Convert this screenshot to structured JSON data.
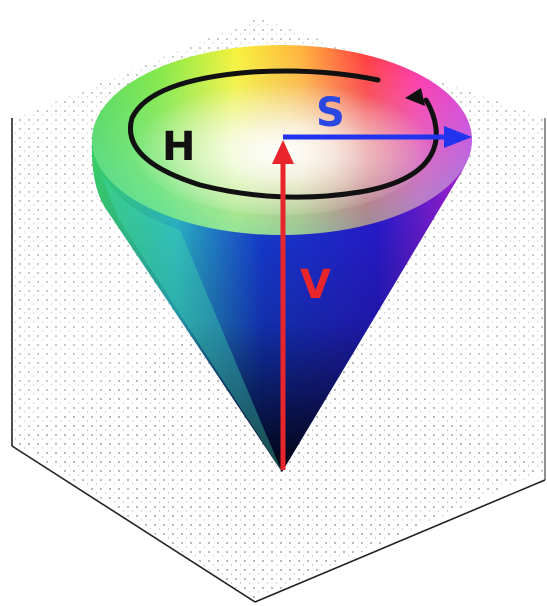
{
  "labels": {
    "hue": "H",
    "saturation": "S",
    "value": "V"
  },
  "colors": {
    "hue_ring": "#111111",
    "saturation_arrow": "#2233ee",
    "saturation_label": "#2a48e0",
    "value_arrow": "#e8252b",
    "value_label": "#e8252b",
    "hue_label": "#111111",
    "box_edge": "#222222",
    "grid_dots": "#555555"
  }
}
